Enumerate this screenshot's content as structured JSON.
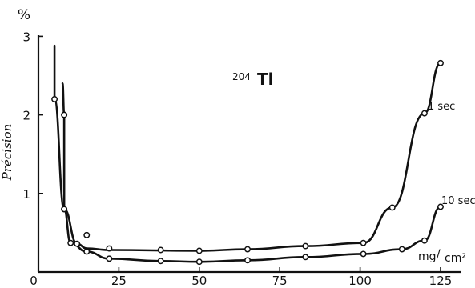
{
  "chart_data": {
    "type": "line",
    "title_sup": "204",
    "title_main": "Tl",
    "ylabel": "Précision",
    "yunit": "%",
    "xunit_num": "mg",
    "xunit_den": "cm²",
    "xlim": [
      0,
      130
    ],
    "ylim": [
      0,
      3.1
    ],
    "xticks": [
      0,
      25,
      50,
      75,
      100,
      125
    ],
    "yticks": [
      1,
      2,
      3
    ],
    "series": [
      {
        "name": "1 sec",
        "markers": [
          [
            5,
            2.2
          ],
          [
            8,
            2.0
          ],
          [
            8,
            0.8
          ],
          [
            12,
            0.36
          ],
          [
            15,
            0.47
          ],
          [
            22,
            0.3
          ],
          [
            38,
            0.28
          ],
          [
            50,
            0.27
          ],
          [
            65,
            0.29
          ],
          [
            83,
            0.33
          ],
          [
            101,
            0.37
          ],
          [
            110,
            0.82
          ],
          [
            120,
            2.02
          ],
          [
            125,
            2.66
          ]
        ],
        "curve_start": [
          5,
          2.88
        ],
        "curve": [
          [
            5,
            2.88
          ],
          [
            5,
            2.2
          ],
          [
            8,
            0.8
          ],
          [
            12,
            0.36
          ],
          [
            15,
            0.3
          ],
          [
            22,
            0.28
          ],
          [
            50,
            0.27
          ],
          [
            65,
            0.29
          ],
          [
            83,
            0.33
          ],
          [
            101,
            0.37
          ],
          [
            110,
            0.82
          ],
          [
            120,
            2.02
          ],
          [
            125,
            2.66
          ]
        ]
      },
      {
        "name": "10 sec",
        "markers": [
          [
            8,
            2.0
          ],
          [
            8,
            0.8
          ],
          [
            10,
            0.37
          ],
          [
            15,
            0.26
          ],
          [
            22,
            0.17
          ],
          [
            38,
            0.14
          ],
          [
            50,
            0.13
          ],
          [
            65,
            0.15
          ],
          [
            83,
            0.19
          ],
          [
            101,
            0.23
          ],
          [
            113,
            0.29
          ],
          [
            120,
            0.4
          ],
          [
            125,
            0.83
          ]
        ],
        "curve": [
          [
            7.5,
            2.4
          ],
          [
            8,
            2.0
          ],
          [
            8,
            0.8
          ],
          [
            10,
            0.37
          ],
          [
            15,
            0.26
          ],
          [
            22,
            0.17
          ],
          [
            38,
            0.14
          ],
          [
            50,
            0.13
          ],
          [
            65,
            0.15
          ],
          [
            83,
            0.19
          ],
          [
            101,
            0.23
          ],
          [
            113,
            0.29
          ],
          [
            120,
            0.4
          ],
          [
            125,
            0.83
          ]
        ]
      }
    ]
  }
}
